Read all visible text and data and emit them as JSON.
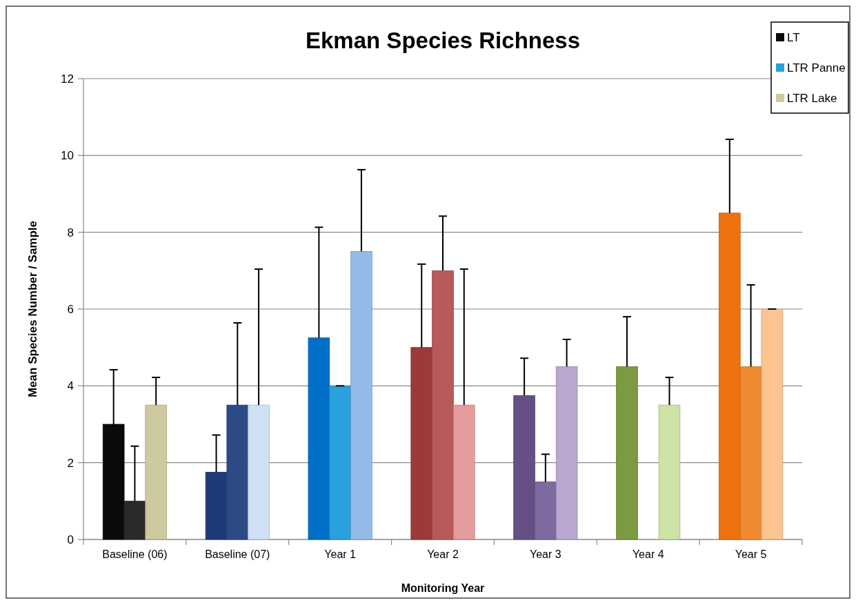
{
  "chart_data": {
    "type": "bar",
    "title": "Ekman Species Richness",
    "xlabel": "Monitoring Year",
    "ylabel": "Mean Species Number / Sample",
    "categories": [
      "Baseline (06)",
      "Baseline (07)",
      "Year 1",
      "Year 2",
      "Year 3",
      "Year 4",
      "Year 5"
    ],
    "series": [
      {
        "name": "LT",
        "color": "#0a0a0a",
        "colors": [
          "#0a0a0a",
          "#1f3a7a",
          "#0070c8",
          "#9b3a3a",
          "#654f85",
          "#7b9a42",
          "#ee720e"
        ],
        "values": [
          3,
          1.75,
          5.25,
          5,
          3.75,
          4.5,
          8.5
        ],
        "errors": [
          [
            3,
            4.42
          ],
          [
            1.75,
            2.72
          ],
          [
            5.25,
            8.13
          ],
          [
            5,
            7.17
          ],
          [
            3.75,
            4.72
          ],
          [
            4.5,
            5.8
          ],
          [
            8.5,
            10.42
          ]
        ]
      },
      {
        "name": "LTR Panne",
        "color": "#2aa0dc",
        "colors": [
          "#2a2a2a",
          "#2c4a86",
          "#2aa0dc",
          "#b85a5a",
          "#7e6aa0",
          null,
          "#f08a30"
        ],
        "values": [
          1,
          3.5,
          4,
          7,
          1.5,
          null,
          4.5
        ],
        "errors": [
          [
            1,
            2.43
          ],
          [
            3.5,
            5.64
          ],
          [
            4,
            4
          ],
          [
            7,
            8.42
          ],
          [
            1.5,
            2.22
          ],
          null,
          [
            4.5,
            6.63
          ]
        ]
      },
      {
        "name": "LTR Lake",
        "color": "#cfc99f",
        "colors": [
          "#cfc99f",
          "#cfe0f5",
          "#94bbe8",
          "#e59c9c",
          "#b9a7d2",
          "#cde2a5",
          "#fcc48e"
        ],
        "values": [
          3.5,
          3.5,
          7.5,
          3.5,
          4.5,
          3.5,
          6
        ],
        "errors": [
          [
            3.5,
            4.22
          ],
          [
            3.5,
            7.04
          ],
          [
            7.5,
            9.63
          ],
          [
            3.5,
            7.04
          ],
          [
            4.5,
            5.21
          ],
          [
            3.5,
            4.22
          ],
          [
            6,
            6
          ]
        ]
      }
    ],
    "ylim": [
      0,
      12
    ],
    "yticks": [
      0,
      2,
      4,
      6,
      8,
      10,
      12
    ],
    "grid": "y",
    "legend": "top right"
  }
}
